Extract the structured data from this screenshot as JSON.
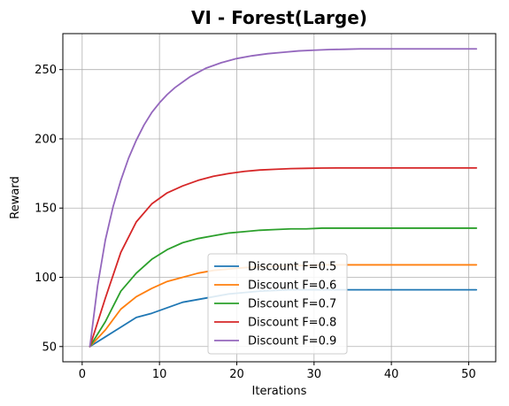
{
  "chart_data": {
    "type": "line",
    "title": "VI - Forest(Large)",
    "xlabel": "Iterations",
    "ylabel": "Reward",
    "xlim": [
      -2.5,
      53.5
    ],
    "ylim": [
      39,
      276
    ],
    "xticks": [
      0,
      10,
      20,
      30,
      40,
      50
    ],
    "yticks": [
      50,
      100,
      150,
      200,
      250
    ],
    "grid": true,
    "legend_position": "lower-center",
    "series": [
      {
        "name": "Discount F=0.5",
        "color": "#1f77b4",
        "x": [
          1,
          3,
          5,
          7,
          9,
          11,
          13,
          15,
          17,
          19,
          21,
          23,
          25,
          27,
          29,
          31,
          33,
          35,
          37,
          39,
          41,
          43,
          45,
          47,
          49,
          51
        ],
        "y": [
          50,
          57,
          64,
          71,
          74,
          78,
          82,
          84,
          86,
          88,
          89,
          90,
          90.5,
          91,
          91,
          91,
          91,
          91,
          91,
          91,
          91,
          91,
          91,
          91,
          91,
          91
        ]
      },
      {
        "name": "Discount F=0.6",
        "color": "#ff7f0e",
        "x": [
          1,
          3,
          5,
          7,
          9,
          11,
          13,
          15,
          17,
          19,
          21,
          23,
          25,
          27,
          29,
          31,
          33,
          35,
          37,
          39,
          41,
          43,
          45,
          47,
          49,
          51
        ],
        "y": [
          50,
          62,
          77,
          86,
          92,
          97,
          100,
          103,
          105,
          106,
          107,
          107.5,
          108,
          108.5,
          108.5,
          109,
          109,
          109,
          109,
          109,
          109,
          109,
          109,
          109,
          109,
          109
        ]
      },
      {
        "name": "Discount F=0.7",
        "color": "#2ca02c",
        "x": [
          1,
          3,
          5,
          7,
          9,
          11,
          13,
          15,
          17,
          19,
          21,
          23,
          25,
          27,
          29,
          31,
          33,
          35,
          37,
          39,
          41,
          43,
          45,
          47,
          49,
          51
        ],
        "y": [
          50,
          68,
          90,
          103,
          113,
          120,
          125,
          128,
          130,
          132,
          133,
          134,
          134.5,
          135,
          135,
          135.5,
          135.5,
          135.5,
          135.5,
          135.5,
          135.5,
          135.5,
          135.5,
          135.5,
          135.5,
          135.5
        ]
      },
      {
        "name": "Discount F=0.8",
        "color": "#d62728",
        "x": [
          1,
          3,
          5,
          7,
          9,
          11,
          13,
          15,
          17,
          19,
          21,
          23,
          25,
          27,
          29,
          31,
          33,
          35,
          37,
          39,
          41,
          43,
          45,
          47,
          49,
          51
        ],
        "y": [
          50,
          85,
          118,
          140,
          153,
          161,
          166,
          170,
          173,
          175,
          176.5,
          177.5,
          178,
          178.5,
          178.7,
          178.9,
          179,
          179,
          179,
          179,
          179,
          179,
          179,
          179,
          179,
          179
        ]
      },
      {
        "name": "Discount F=0.9",
        "color": "#9467bd",
        "x": [
          1,
          2,
          3,
          4,
          5,
          6,
          7,
          8,
          9,
          10,
          11,
          12,
          13,
          14,
          15,
          16,
          17,
          18,
          19,
          20,
          22,
          24,
          26,
          28,
          30,
          32,
          34,
          36,
          38,
          40,
          42,
          44,
          46,
          48,
          50,
          51
        ],
        "y": [
          50,
          94,
          127,
          151,
          170,
          186,
          199,
          210,
          219,
          226,
          232,
          237,
          241,
          245,
          248,
          251,
          253,
          255,
          256.5,
          258,
          260,
          261.5,
          262.5,
          263.5,
          264,
          264.5,
          264.7,
          265,
          265,
          265,
          265,
          265,
          265,
          265,
          265,
          265
        ]
      }
    ]
  }
}
